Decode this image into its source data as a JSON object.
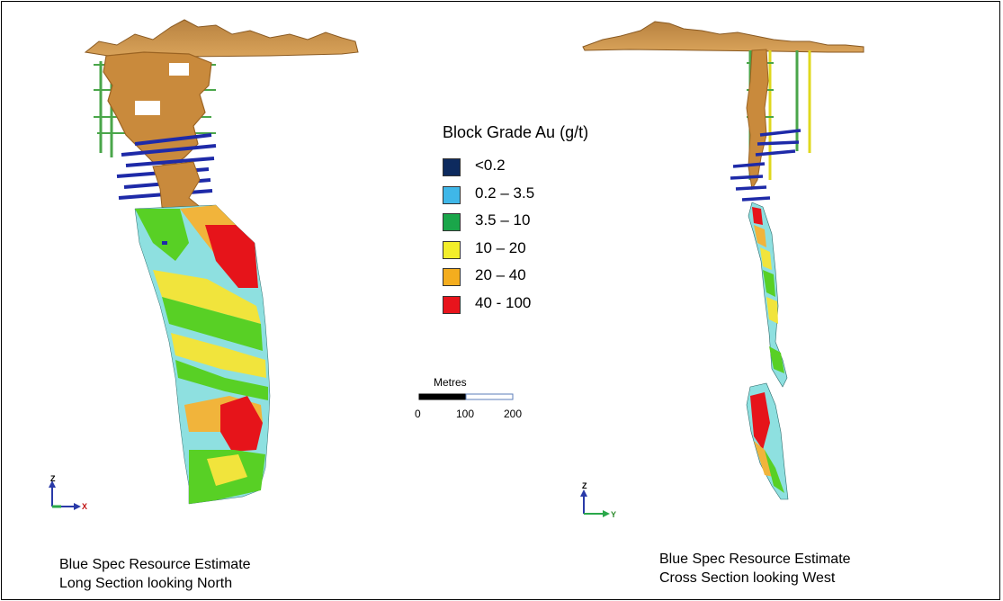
{
  "legend": {
    "title": "Block Grade Au (g/t)",
    "items": [
      {
        "label": "<0.2",
        "color": "#0d2a5e"
      },
      {
        "label": "0.2 – 3.5",
        "color": "#3fb7e8"
      },
      {
        "label": "3.5 – 10",
        "color": "#1aa64a"
      },
      {
        "label": "10 – 20",
        "color": "#f3ee2a"
      },
      {
        "label": "20 – 40",
        "color": "#f4ad1e"
      },
      {
        "label": "40 - 100",
        "color": "#e8141c"
      }
    ]
  },
  "scale_bar": {
    "title": "Metres",
    "ticks": [
      "0",
      "100",
      "200"
    ]
  },
  "long_section": {
    "axis_labels": [
      "Z",
      "X"
    ],
    "caption_lines": [
      "Blue Spec Resource Estimate",
      "Long Section looking North"
    ]
  },
  "cross_section": {
    "axis_labels": [
      "Z",
      "Y"
    ],
    "caption_lines": [
      "Blue Spec Resource Estimate",
      "Cross Section looking West"
    ]
  },
  "colors": {
    "wireframe": "#c98a3c",
    "wireframe_dark": "#9a6322",
    "drillhole_green": "#4aa64a",
    "drillhole_yellow": "#e0d81e",
    "block_cyan": "#8ee0e0",
    "block_green": "#58d025",
    "block_yellow": "#f1e43c",
    "block_orange": "#f1b43b",
    "block_red": "#e6141a"
  }
}
